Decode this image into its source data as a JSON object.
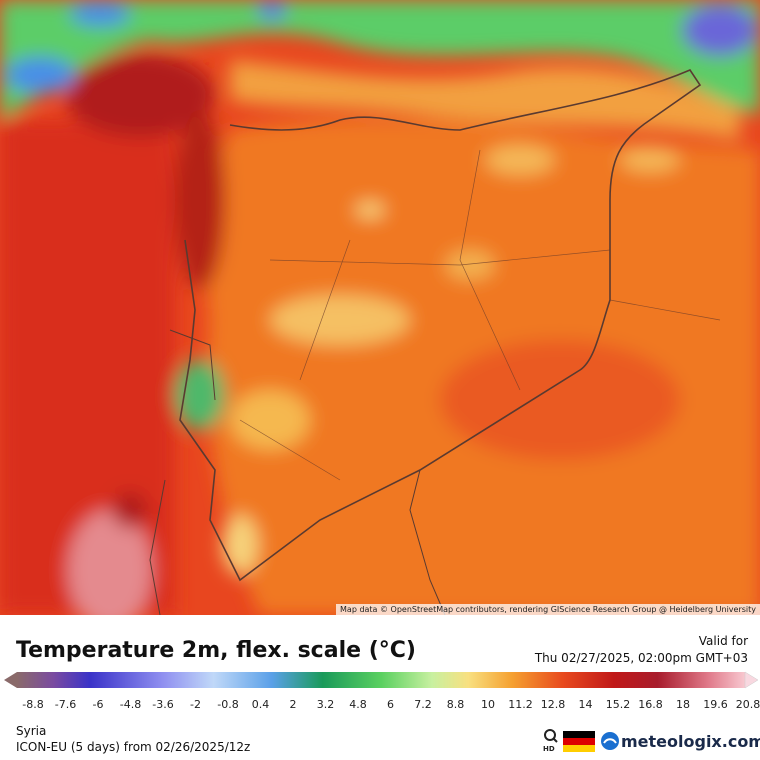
{
  "map": {
    "attribution": "Map data © OpenStreetMap contributors, rendering GIScience Research Group @ Heidelberg University"
  },
  "legend": {
    "title": "Temperature 2m, flex. scale (°C)",
    "ticks": [
      "-8.8",
      "-7.6",
      "-6",
      "-4.8",
      "-3.6",
      "-2",
      "-0.8",
      "0.4",
      "2",
      "3.2",
      "4.8",
      "6",
      "7.2",
      "8.8",
      "10",
      "11.2",
      "12.8",
      "14",
      "15.2",
      "16.8",
      "18",
      "19.6",
      "20.8"
    ]
  },
  "valid": {
    "label": "Valid for",
    "time": "Thu 02/27/2025, 02:00pm GMT+03"
  },
  "footer": {
    "region": "Syria",
    "model": "ICON-EU (5 days) from 02/26/2025/12z"
  },
  "brand": {
    "hd": "HD",
    "name": "meteologix.com"
  }
}
